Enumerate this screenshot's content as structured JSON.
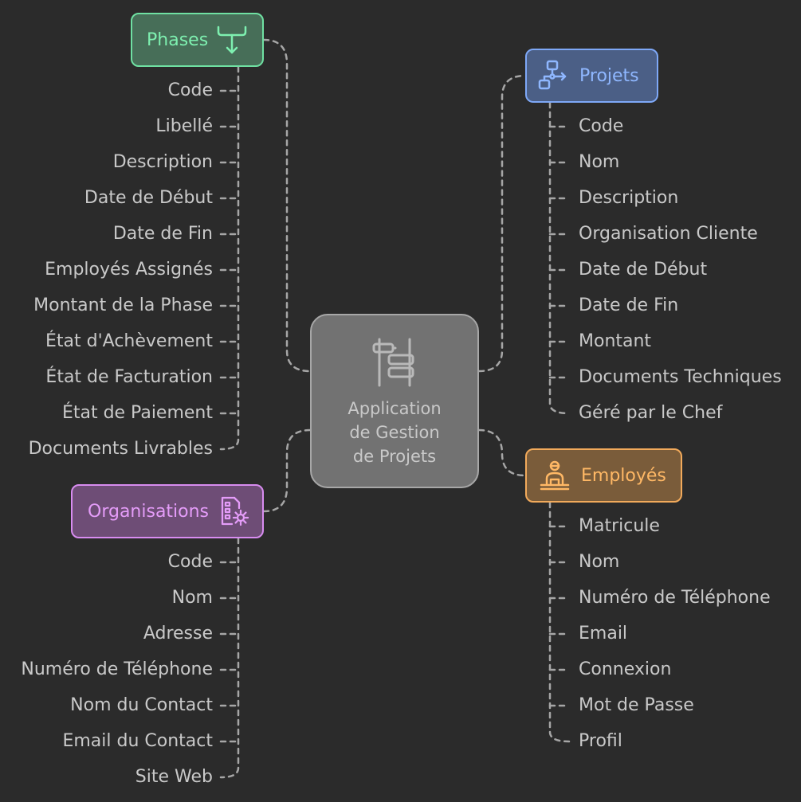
{
  "center": {
    "title": "Application\nde Gestion\nde Projets",
    "icon": "organization-icon"
  },
  "colors": {
    "background": "#2b2b2b",
    "line": "#a6a6a6",
    "text": "#c9c9c9",
    "phases": "#7ef0b0",
    "projets": "#8fb7ff",
    "organisations": "#e49cf8",
    "employes": "#ffb865"
  },
  "phases": {
    "label": "Phases",
    "icon": "merge-arrow-icon",
    "items": [
      "Code",
      "Libellé",
      "Description",
      "Date de Début",
      "Date de Fin",
      "Employés Assignés",
      "Montant de la Phase",
      "État d'Achèvement",
      "État de Facturation",
      "État de Paiement",
      "Documents Livrables"
    ]
  },
  "projets": {
    "label": "Projets",
    "icon": "flowchart-icon",
    "items": [
      "Code",
      "Nom",
      "Description",
      "Organisation Cliente",
      "Date de Début",
      "Date de Fin",
      "Montant",
      "Documents Techniques",
      "Géré par le Chef"
    ]
  },
  "organisations": {
    "label": "Organisations",
    "icon": "document-settings-icon",
    "items": [
      "Code",
      "Nom",
      "Adresse",
      "Numéro de Téléphone",
      "Nom du Contact",
      "Email du Contact",
      "Site Web"
    ]
  },
  "employes": {
    "label": "Employés",
    "icon": "employee-desk-icon",
    "items": [
      "Matricule",
      "Nom",
      "Numéro de Téléphone",
      "Email",
      "Connexion",
      "Mot de Passe",
      "Profil"
    ]
  }
}
